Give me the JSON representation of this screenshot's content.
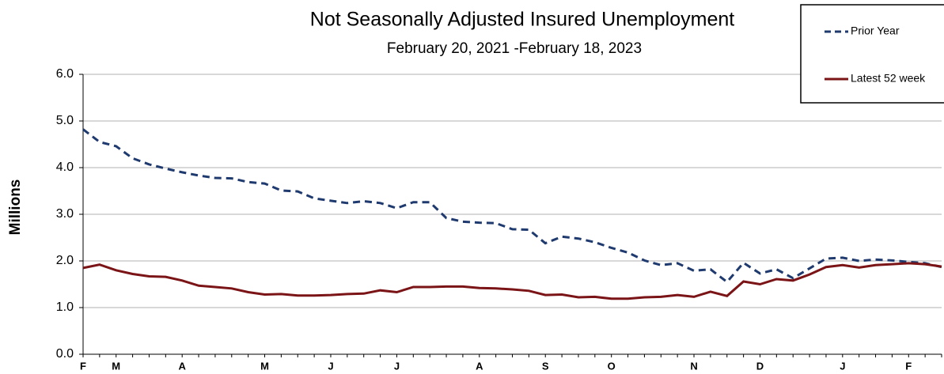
{
  "chart_data": {
    "type": "line",
    "title": "Not Seasonally Adjusted Insured Unemployment",
    "subtitle": "February 20, 2021 -February 18, 2023",
    "y_label": "Millions",
    "categories": [
      "F",
      null,
      "M",
      null,
      null,
      null,
      "A",
      null,
      null,
      null,
      null,
      "M",
      null,
      null,
      null,
      "J",
      null,
      null,
      null,
      "J",
      null,
      null,
      null,
      null,
      "A",
      null,
      null,
      null,
      "S",
      null,
      null,
      null,
      "O",
      null,
      null,
      null,
      null,
      "N",
      null,
      null,
      null,
      "D",
      null,
      null,
      null,
      null,
      "J",
      null,
      null,
      null,
      "F",
      null,
      null
    ],
    "series": [
      {
        "name": "Prior Year",
        "color": "#1f3a6e",
        "dash": true,
        "values": [
          4.82,
          4.55,
          4.46,
          4.2,
          4.07,
          3.98,
          3.9,
          3.83,
          3.78,
          3.77,
          3.69,
          3.66,
          3.51,
          3.49,
          3.34,
          3.29,
          3.24,
          3.28,
          3.24,
          3.13,
          3.26,
          3.26,
          2.92,
          2.84,
          2.82,
          2.81,
          2.68,
          2.67,
          2.38,
          2.52,
          2.48,
          2.4,
          2.28,
          2.18,
          2.01,
          1.91,
          1.95,
          1.79,
          1.82,
          1.55,
          1.96,
          1.73,
          1.82,
          1.63,
          1.84,
          2.05,
          2.07,
          2.0,
          2.03,
          2.01,
          1.98,
          1.95,
          1.87
        ]
      },
      {
        "name": "Latest 52 week",
        "color": "#7b1416",
        "dash": false,
        "values": [
          1.85,
          1.92,
          1.8,
          1.72,
          1.67,
          1.66,
          1.58,
          1.47,
          1.44,
          1.41,
          1.33,
          1.28,
          1.29,
          1.26,
          1.26,
          1.27,
          1.29,
          1.3,
          1.37,
          1.33,
          1.44,
          1.44,
          1.45,
          1.45,
          1.42,
          1.41,
          1.39,
          1.36,
          1.27,
          1.28,
          1.22,
          1.23,
          1.19,
          1.19,
          1.22,
          1.23,
          1.27,
          1.23,
          1.34,
          1.25,
          1.56,
          1.5,
          1.61,
          1.58,
          1.71,
          1.87,
          1.91,
          1.86,
          1.91,
          1.93,
          1.95,
          1.93,
          1.88
        ]
      }
    ],
    "ylim": [
      0,
      6
    ],
    "yticks": [
      {
        "value": 0,
        "label": "0.0"
      },
      {
        "value": 1,
        "label": "1.0"
      },
      {
        "value": 2,
        "label": "2.0"
      },
      {
        "value": 3,
        "label": "3.0"
      },
      {
        "value": 4,
        "label": "4.0"
      },
      {
        "value": 5,
        "label": "5.0"
      },
      {
        "value": 6,
        "label": "6.0"
      }
    ],
    "grid": true,
    "legend": "upper right"
  }
}
